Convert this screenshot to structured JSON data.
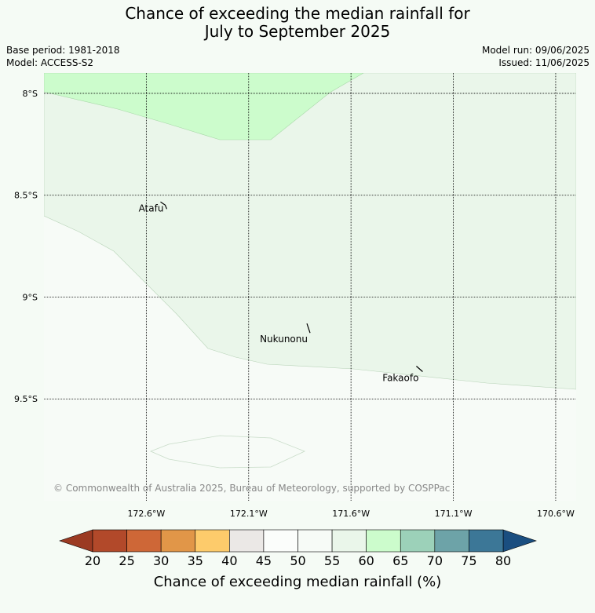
{
  "title": {
    "line1": "Chance of exceeding the median rainfall for",
    "line2": "July to September 2025"
  },
  "meta": {
    "base_period": "Base period: 1981-2018",
    "model": "Model: ACCESS-S2",
    "model_run": "Model run: 09/06/2025",
    "issued": "Issued: 11/06/2025"
  },
  "map": {
    "lon_range": [
      -173.1,
      -170.5
    ],
    "lat_range": [
      -10.0,
      -7.9
    ],
    "lat_ticks": [
      {
        "value": -8.0,
        "label": "8°S"
      },
      {
        "value": -8.5,
        "label": "8.5°S"
      },
      {
        "value": -9.0,
        "label": "9°S"
      },
      {
        "value": -9.5,
        "label": "9.5°S"
      }
    ],
    "lon_ticks": [
      {
        "value": -172.6,
        "label": "172.6°W"
      },
      {
        "value": -172.1,
        "label": "172.1°W"
      },
      {
        "value": -171.6,
        "label": "171.6°W"
      },
      {
        "value": -171.1,
        "label": "171.1°W"
      },
      {
        "value": -170.6,
        "label": "170.6°W"
      }
    ],
    "places": [
      {
        "name": "Atafu",
        "lon": -172.5,
        "lat": -8.56
      },
      {
        "name": "Nukunonu",
        "lon": -171.8,
        "lat": -9.18
      },
      {
        "name": "Fakaofo",
        "lon": -171.25,
        "lat": -9.37
      }
    ],
    "copyright": "© Commonwealth of Australia 2025, Bureau of Meteorology, supported by COSPPac",
    "colors": {
      "band_55_60": "#eaf6ea",
      "band_60_65": "#ccfccc",
      "band_50_55": "#f7fbf7"
    }
  },
  "legend": {
    "title": "Chance of exceeding median rainfall (%)",
    "ticks": [
      "20",
      "25",
      "30",
      "35",
      "40",
      "45",
      "50",
      "55",
      "60",
      "65",
      "70",
      "75",
      "80"
    ],
    "colors": [
      "#b2492a",
      "#ce6737",
      "#e19648",
      "#fdcb6b",
      "#ebe8e6",
      "#fbfdfb",
      "#f7fbf7",
      "#eaf6ea",
      "#ccfccc",
      "#9cd1b9",
      "#6da3a8",
      "#3c7797"
    ],
    "under_color": "#9b3a22",
    "over_color": "#1a4e80"
  }
}
